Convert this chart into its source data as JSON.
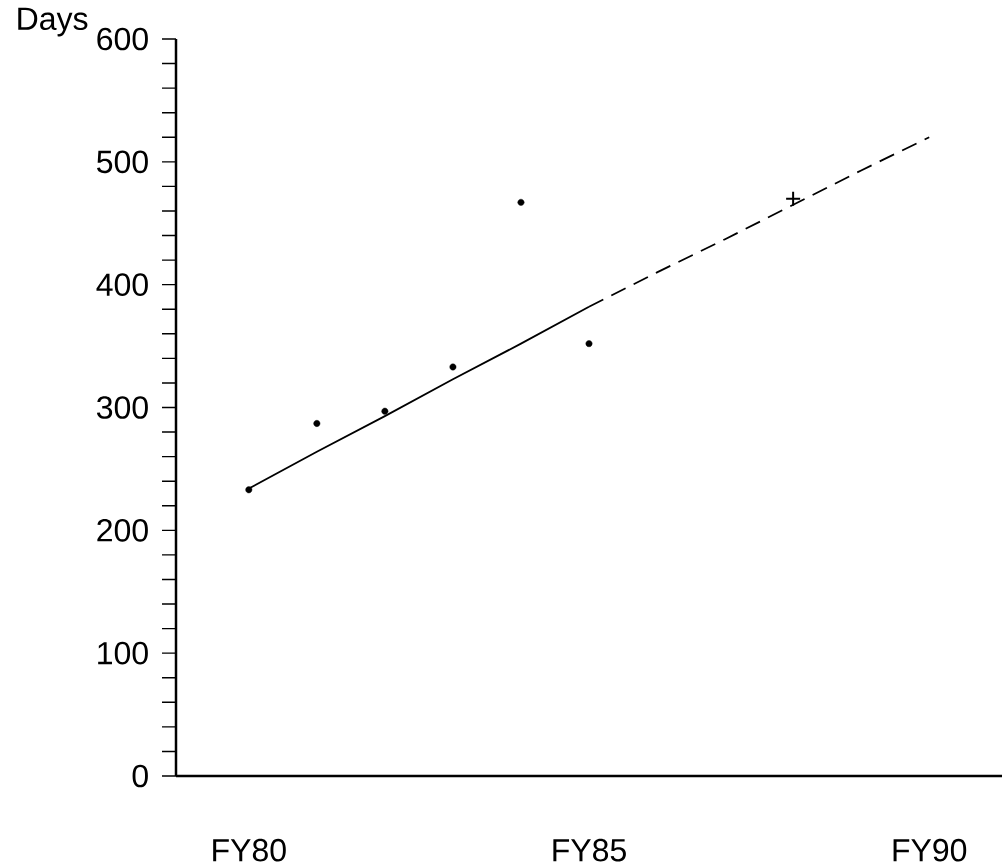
{
  "chart_data": {
    "type": "scatter",
    "ylabel": "Days",
    "categories": [
      "FY80",
      null,
      null,
      null,
      null,
      "FY85",
      null,
      null,
      null,
      null,
      "FY90"
    ],
    "series": [
      {
        "values": [
          233,
          287,
          297,
          333,
          467,
          352,
          null,
          null,
          null,
          null,
          null
        ],
        "color": "#000000",
        "marker": "circle"
      },
      {
        "values": [
          null,
          null,
          null,
          null,
          null,
          null,
          null,
          null,
          470,
          null,
          null
        ],
        "color": "#000000",
        "marker": "cross"
      },
      {
        "type": "line",
        "values": [
          234,
          264,
          293,
          323,
          352,
          382,
          null,
          null,
          null,
          null,
          null
        ],
        "color": "#000000",
        "line_style": "solid",
        "marker": "none"
      },
      {
        "type": "line",
        "values": [
          null,
          null,
          null,
          null,
          null,
          382,
          410,
          437,
          465,
          493,
          520
        ],
        "color": "#000000",
        "line_style": "dashed",
        "marker": "none"
      }
    ],
    "ylim": [
      0,
      600
    ],
    "yticks": [
      0,
      {
        "value": 20,
        "label": null
      },
      {
        "value": 40,
        "label": null
      },
      {
        "value": 60,
        "label": null
      },
      {
        "value": 80,
        "label": null
      },
      100,
      {
        "value": 120,
        "label": null
      },
      {
        "value": 140,
        "label": null
      },
      {
        "value": 160,
        "label": null
      },
      {
        "value": 180,
        "label": null
      },
      200,
      {
        "value": 220,
        "label": null
      },
      {
        "value": 240,
        "label": null
      },
      {
        "value": 260,
        "label": null
      },
      {
        "value": 280,
        "label": null
      },
      300,
      {
        "value": 320,
        "label": null
      },
      {
        "value": 340,
        "label": null
      },
      {
        "value": 360,
        "label": null
      },
      {
        "value": 380,
        "label": null
      },
      400,
      {
        "value": 420,
        "label": null
      },
      {
        "value": 440,
        "label": null
      },
      {
        "value": 460,
        "label": null
      },
      {
        "value": 480,
        "label": null
      },
      500,
      {
        "value": 520,
        "label": null
      },
      {
        "value": 540,
        "label": null
      },
      {
        "value": 560,
        "label": null
      },
      {
        "value": 580,
        "label": null
      },
      600
    ],
    "grid": false,
    "legend": false
  }
}
